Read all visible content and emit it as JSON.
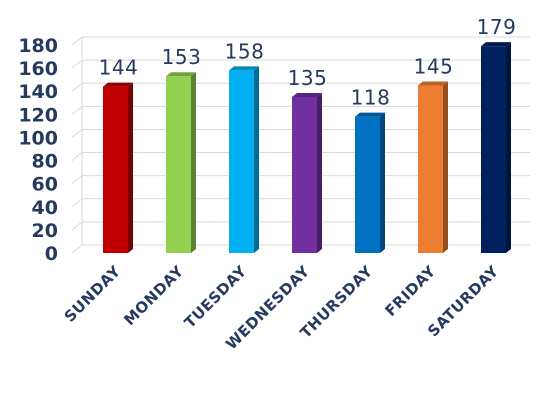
{
  "chart_data": {
    "type": "bar",
    "title": "",
    "xlabel": "",
    "ylabel": "",
    "categories": [
      "Sunday",
      "Monday",
      "Tuesday",
      "Wednesday",
      "Thursday",
      "Friday",
      "Saturday"
    ],
    "values": [
      144,
      153,
      158,
      135,
      118,
      145,
      179
    ],
    "ylim": [
      0,
      180
    ],
    "yticks": [
      "0",
      "20",
      "40",
      "60",
      "80",
      "100",
      "120",
      "140",
      "160",
      "180"
    ],
    "data_labels": [
      "144",
      "153",
      "158",
      "135",
      "118",
      "145",
      "179"
    ],
    "colors": [
      "#c00000",
      "#92d050",
      "#00b0f0",
      "#7030a0",
      "#0070c0",
      "#ed7d31",
      "#002060"
    ],
    "grid": true,
    "legend": "none",
    "style": "3d-column"
  }
}
